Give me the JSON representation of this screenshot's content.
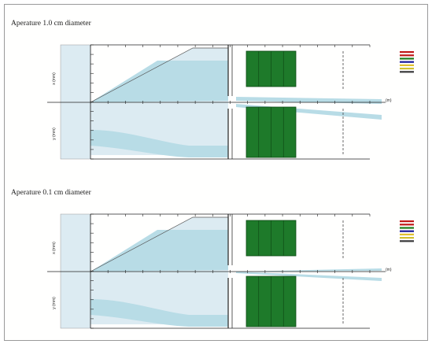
{
  "sections": [
    {
      "title": "Aperature 1.0 cm diameter",
      "y_label_upper": "x (mm)",
      "y_label_lower": "y (mm)",
      "x_unit": "(m)",
      "legend_colors": [
        "#c01818",
        "#c01818",
        "#1a7a1a",
        "#1a1a9a",
        "#e0c030",
        "#d0c030",
        "#3a3a3a"
      ]
    },
    {
      "title": "Aperature 0.1 cm diameter",
      "y_label_upper": "x (mm)",
      "y_label_lower": "y (mm)",
      "x_unit": "(m)",
      "legend_colors": [
        "#c01818",
        "#c01818",
        "#1a7a1a",
        "#1a1a9a",
        "#e0c030",
        "#d0c030",
        "#3a3a3a"
      ]
    }
  ],
  "colors": {
    "beam_light": "#dcebf2",
    "beam_mid": "#b8dce6",
    "magnet_green": "#1e7a2a",
    "axis": "#222222"
  }
}
